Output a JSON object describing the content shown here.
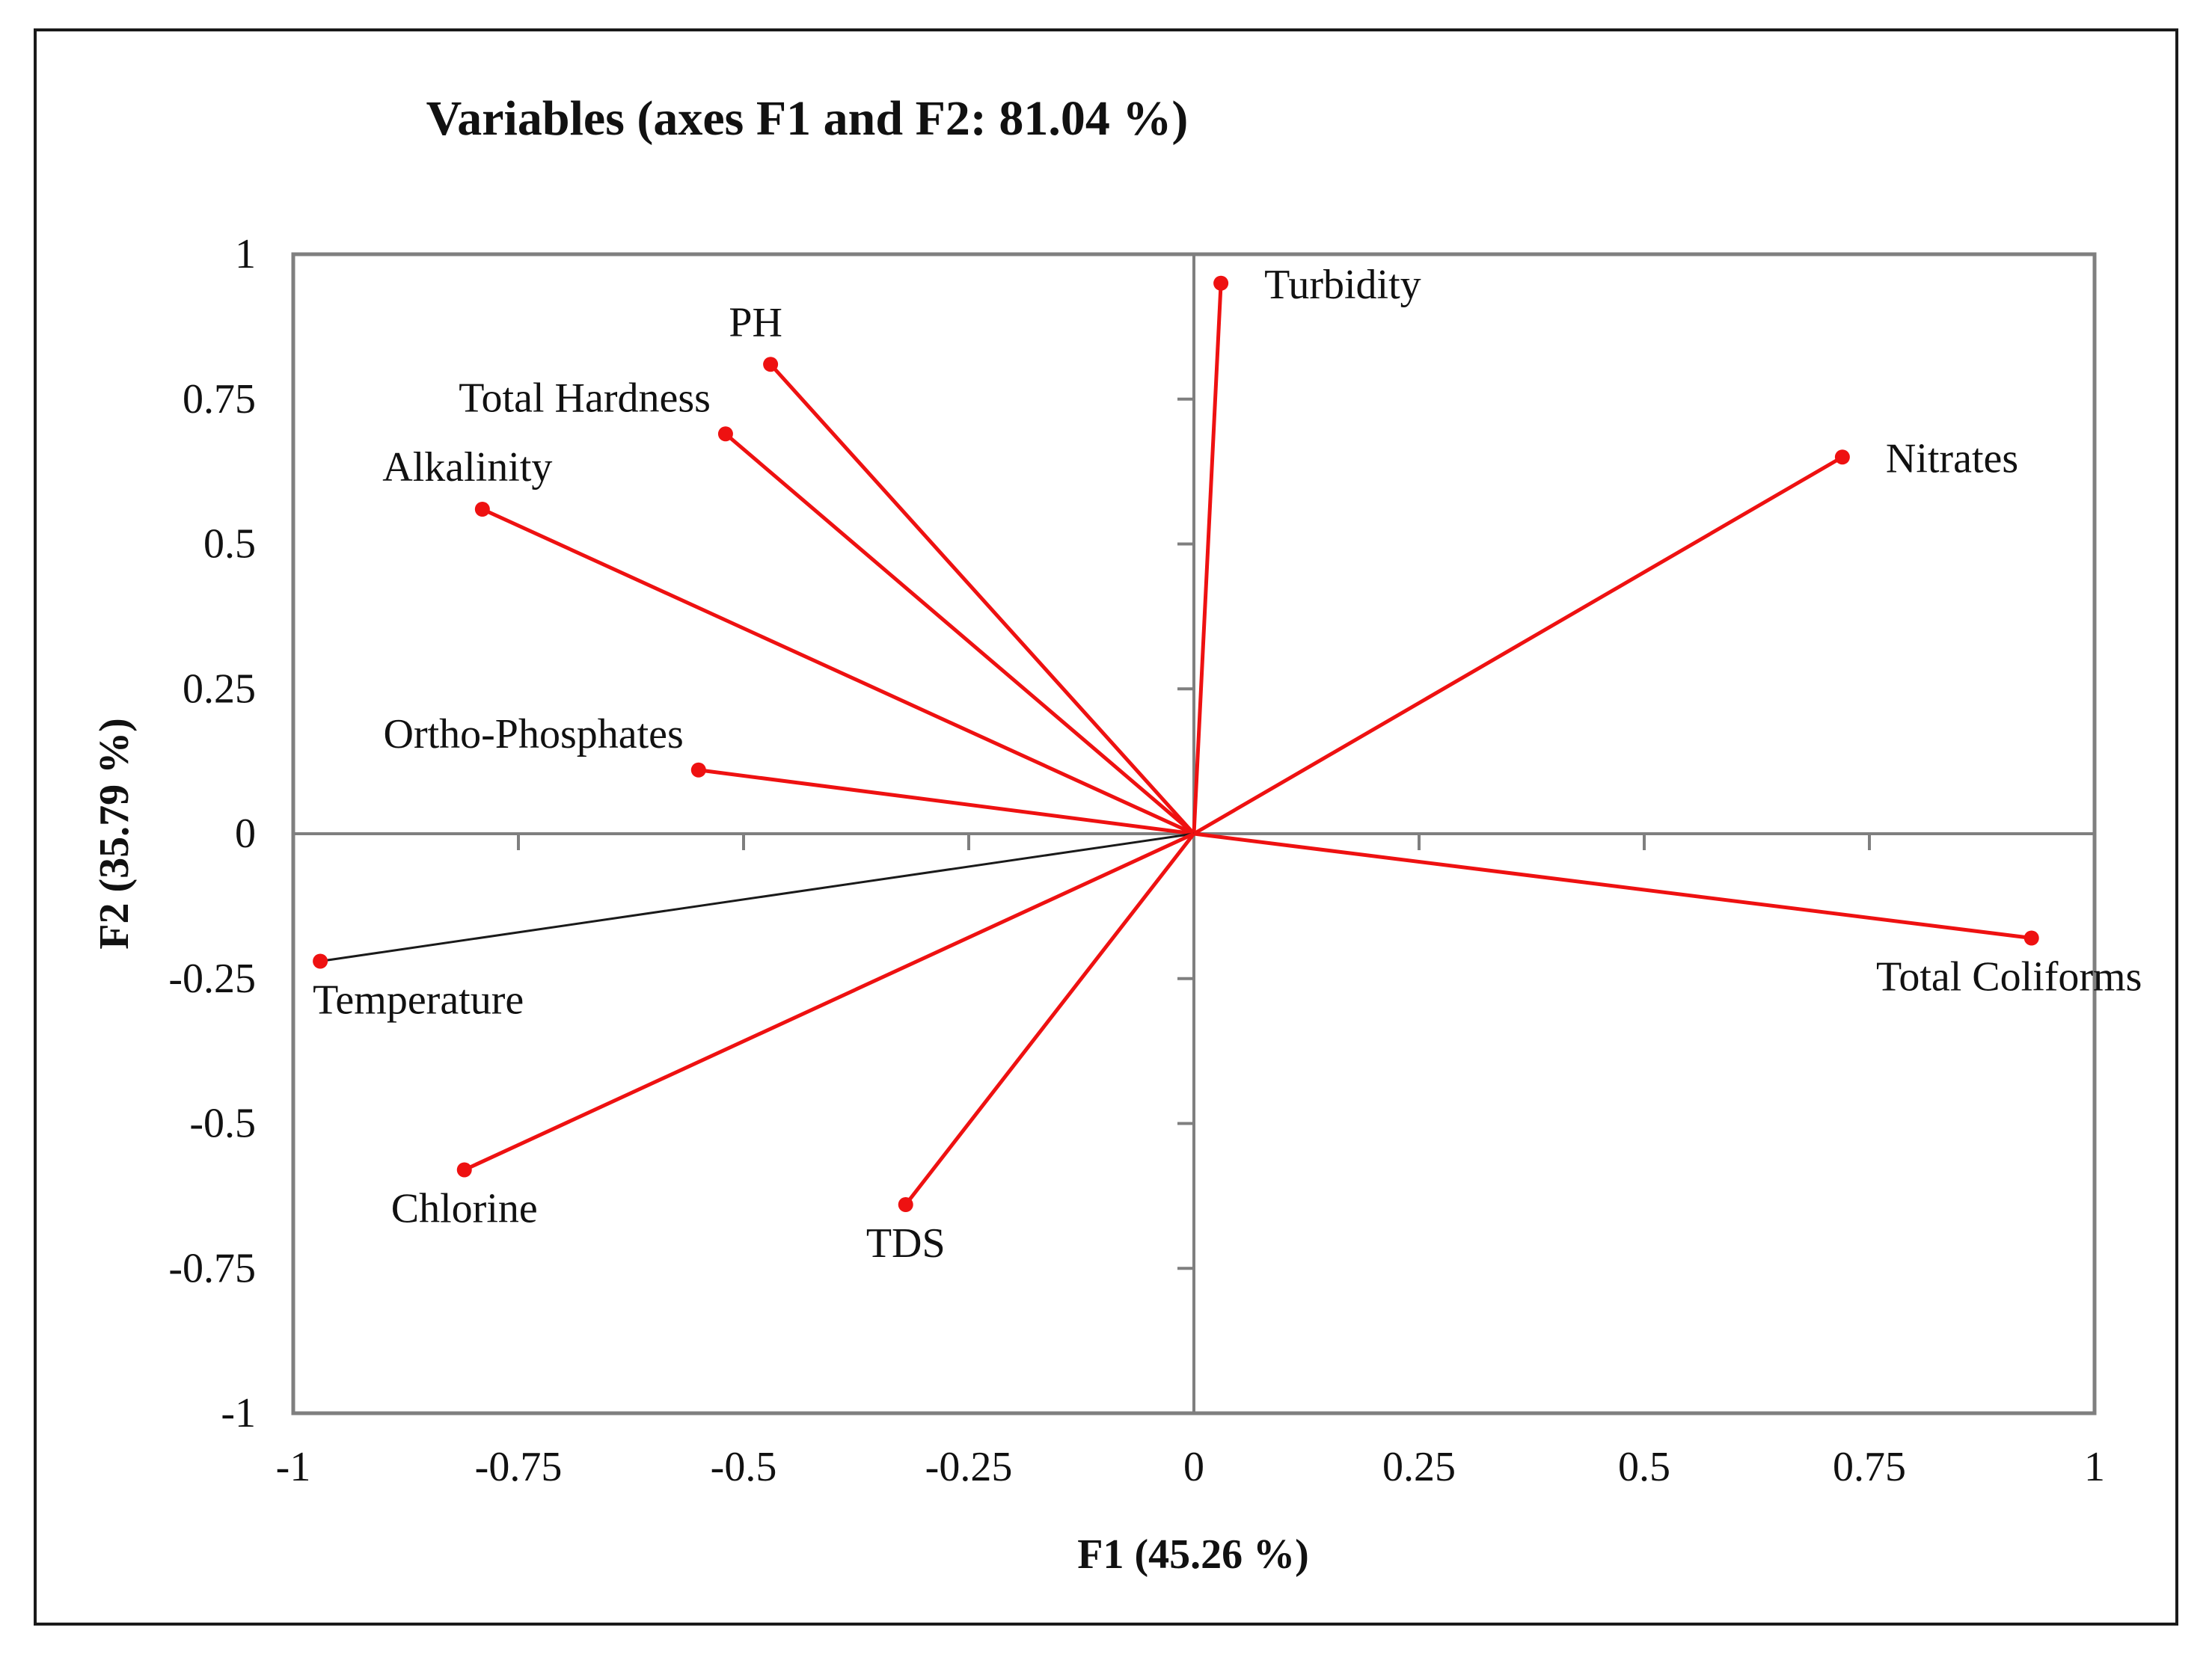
{
  "chart_data": {
    "type": "scatter",
    "subtype": "pca-correlation-circle",
    "title": "Variables (axes F1 and F2: 81.04 %)",
    "xlabel": "F1 (45.26 %)",
    "ylabel": "F2 (35.79 %)",
    "xlim": [
      -1,
      1
    ],
    "ylim": [
      -1,
      1
    ],
    "xticks": [
      "-1",
      "-0.75",
      "-0.5",
      "-0.25",
      "0",
      "0.25",
      "0.5",
      "0.75",
      "1"
    ],
    "yticks": [
      "1",
      "0.75",
      "0.5",
      "0.25",
      "0",
      "-0.25",
      "-0.5",
      "-0.75",
      "-1"
    ],
    "grid": false,
    "colors": {
      "vector": "#ee1111",
      "highlight": "#1a1a1a",
      "axes": "#7f7f7f"
    },
    "variables": [
      {
        "name": "Turbidity",
        "x": 0.03,
        "y": 0.95,
        "color": "#ee1111",
        "label_pos": "right"
      },
      {
        "name": "PH",
        "x": -0.47,
        "y": 0.81,
        "color": "#ee1111",
        "label_pos": "top"
      },
      {
        "name": "Total Hardness",
        "x": -0.52,
        "y": 0.69,
        "color": "#ee1111",
        "label_pos": "left"
      },
      {
        "name": "Alkalinity",
        "x": -0.79,
        "y": 0.56,
        "color": "#ee1111",
        "label_pos": "top"
      },
      {
        "name": "Nitrates",
        "x": 0.72,
        "y": 0.65,
        "color": "#ee1111",
        "label_pos": "right"
      },
      {
        "name": "Ortho-Phosphates",
        "x": -0.55,
        "y": 0.11,
        "color": "#ee1111",
        "label_pos": "left"
      },
      {
        "name": "Total Coliforms",
        "x": 0.93,
        "y": -0.18,
        "color": "#ee1111",
        "label_pos": "bottom"
      },
      {
        "name": "Temperature",
        "x": -0.97,
        "y": -0.22,
        "color": "#1a1a1a",
        "label_pos": "bottom"
      },
      {
        "name": "Chlorine",
        "x": -0.81,
        "y": -0.58,
        "color": "#ee1111",
        "label_pos": "bottom"
      },
      {
        "name": "TDS",
        "x": -0.32,
        "y": -0.64,
        "color": "#ee1111",
        "label_pos": "bottom"
      }
    ]
  }
}
